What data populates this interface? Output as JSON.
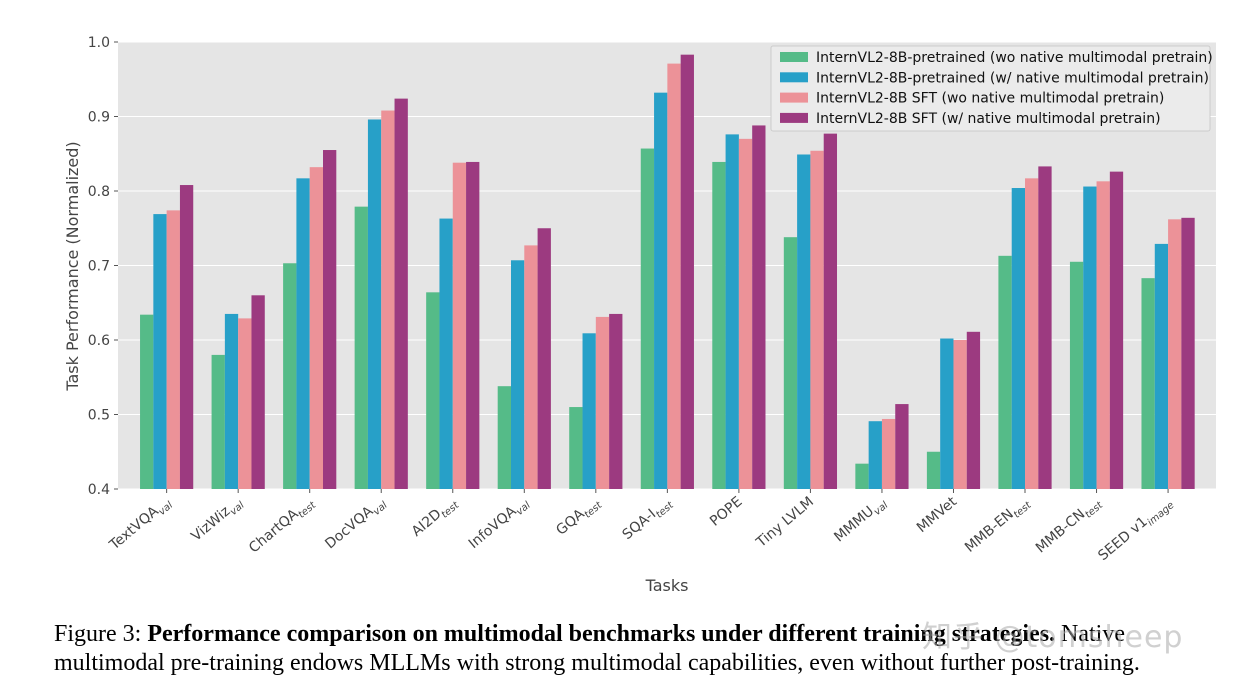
{
  "chart_data": {
    "type": "bar",
    "ylabel": "Task Performance (Normalized)",
    "xlabel": "Tasks",
    "ylim": [
      0.4,
      1.0
    ],
    "yticks": [
      "0.4",
      "0.5",
      "0.6",
      "0.7",
      "0.8",
      "0.9",
      "1.0"
    ],
    "grid": true,
    "legend_position": "top-right",
    "categories": [
      {
        "base": "TextVQA",
        "sub": "val"
      },
      {
        "base": "VizWiz",
        "sub": "val"
      },
      {
        "base": "ChartQA",
        "sub": "test"
      },
      {
        "base": "DocVQA",
        "sub": "val"
      },
      {
        "base": "AI2D",
        "sub": "test"
      },
      {
        "base": "InfoVQA",
        "sub": "val"
      },
      {
        "base": "GQA",
        "sub": "test"
      },
      {
        "base": "SQA-I",
        "sub": "test"
      },
      {
        "base": "POPE",
        "sub": ""
      },
      {
        "base": "Tiny LVLM",
        "sub": ""
      },
      {
        "base": "MMMU",
        "sub": "val"
      },
      {
        "base": "MMVet",
        "sub": ""
      },
      {
        "base": "MMB-EN",
        "sub": "test"
      },
      {
        "base": "MMB-CN",
        "sub": "test"
      },
      {
        "base": "SEED v1",
        "sub": "image"
      }
    ],
    "series": [
      {
        "name": "InternVL2-8B-pretrained (wo native multimodal pretrain)",
        "color": "#55bb88",
        "values": [
          0.634,
          0.58,
          0.703,
          0.779,
          0.664,
          0.538,
          0.51,
          0.857,
          0.839,
          0.738,
          0.434,
          0.45,
          0.713,
          0.705,
          0.683
        ]
      },
      {
        "name": "InternVL2-8B-pretrained (w/ native multimodal pretrain)",
        "color": "#27a0c8",
        "values": [
          0.769,
          0.635,
          0.817,
          0.896,
          0.763,
          0.707,
          0.609,
          0.932,
          0.876,
          0.849,
          0.491,
          0.602,
          0.804,
          0.806,
          0.729
        ]
      },
      {
        "name": "InternVL2-8B SFT (wo native multimodal pretrain)",
        "color": "#ec9298",
        "values": [
          0.774,
          0.629,
          0.832,
          0.908,
          0.838,
          0.727,
          0.631,
          0.971,
          0.87,
          0.854,
          0.494,
          0.6,
          0.817,
          0.813,
          0.762
        ]
      },
      {
        "name": "InternVL2-8B SFT (w/ native multimodal pretrain)",
        "color": "#9c3a80",
        "values": [
          0.808,
          0.66,
          0.855,
          0.924,
          0.839,
          0.75,
          0.635,
          0.983,
          0.888,
          0.877,
          0.514,
          0.611,
          0.833,
          0.826,
          0.764
        ]
      }
    ]
  },
  "caption": {
    "label": "Figure 3:",
    "bold": "Performance comparison on multimodal benchmarks under different training strategies.",
    "rest": "Native multimodal pre-training endows MLLMs with strong multimodal capabilities, even without further post-training."
  },
  "watermark": "知乎 @tomsheep"
}
